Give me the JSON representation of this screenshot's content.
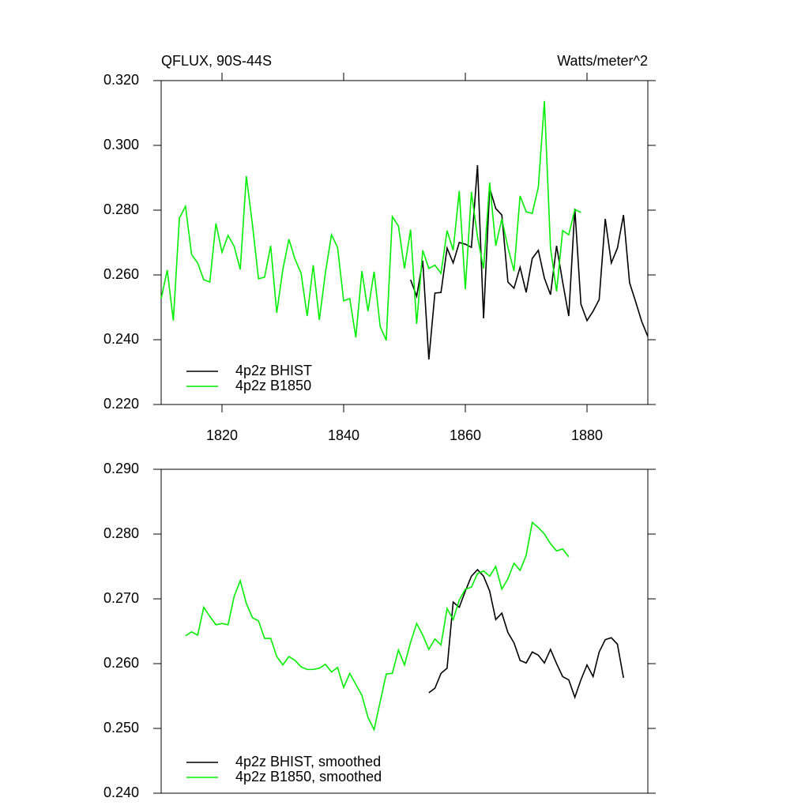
{
  "chart_data": [
    {
      "type": "line",
      "title": "QFLUX, 90S-44S",
      "subtitle": "Watts/meter^2",
      "xlim": [
        1810,
        1890
      ],
      "xticks": [
        1820,
        1840,
        1860,
        1880
      ],
      "ylim": [
        0.22,
        0.32
      ],
      "yticks": [
        {
          "value": 0.22,
          "label": "0.220"
        },
        {
          "value": 0.24,
          "label": "0.240"
        },
        {
          "value": 0.26,
          "label": "0.260"
        },
        {
          "value": 0.28,
          "label": "0.280"
        },
        {
          "value": 0.3,
          "label": "0.300"
        },
        {
          "value": 0.32,
          "label": "0.320"
        }
      ],
      "series": [
        {
          "name": "4p2z BHIST",
          "color": "#000000",
          "x": [
            1851,
            1852,
            1853,
            1854,
            1855,
            1856,
            1857,
            1858,
            1859,
            1860,
            1861,
            1862,
            1863,
            1864,
            1865,
            1866,
            1867,
            1868,
            1869,
            1870,
            1871,
            1872,
            1873,
            1874,
            1875,
            1876,
            1877,
            1878,
            1879,
            1880,
            1881,
            1882,
            1883,
            1884,
            1885,
            1886,
            1887,
            1888,
            1889,
            1890
          ],
          "values": [
            0.2585,
            0.2534,
            0.2644,
            0.2339,
            0.2544,
            0.2546,
            0.2683,
            0.2637,
            0.27,
            0.2695,
            0.2685,
            0.2939,
            0.2466,
            0.2868,
            0.2805,
            0.2785,
            0.2578,
            0.2559,
            0.2624,
            0.2546,
            0.2651,
            0.2676,
            0.259,
            0.2539,
            0.269,
            0.2578,
            0.2473,
            0.2805,
            0.251,
            0.2459,
            0.2488,
            0.2524,
            0.2773,
            0.2637,
            0.2683,
            0.2785,
            0.2576,
            0.2517,
            0.2456,
            0.241
          ]
        },
        {
          "name": "4p2z B1850",
          "color": "#00ee00",
          "x": [
            1810,
            1811,
            1812,
            1813,
            1814,
            1815,
            1816,
            1817,
            1818,
            1819,
            1820,
            1821,
            1822,
            1823,
            1824,
            1825,
            1826,
            1827,
            1828,
            1829,
            1830,
            1831,
            1832,
            1833,
            1834,
            1835,
            1836,
            1837,
            1838,
            1839,
            1840,
            1841,
            1842,
            1843,
            1844,
            1845,
            1846,
            1847,
            1848,
            1849,
            1850,
            1851,
            1852,
            1853,
            1854,
            1855,
            1856,
            1857,
            1858,
            1859,
            1860,
            1861,
            1862,
            1863,
            1864,
            1865,
            1866,
            1867,
            1868,
            1869,
            1870,
            1871,
            1872,
            1873,
            1874,
            1875,
            1876,
            1877,
            1878,
            1879
          ],
          "values": [
            0.2527,
            0.2615,
            0.2459,
            0.2776,
            0.2812,
            0.2663,
            0.2637,
            0.2585,
            0.2578,
            0.2759,
            0.267,
            0.2722,
            0.2688,
            0.2617,
            0.2905,
            0.2756,
            0.2588,
            0.2593,
            0.269,
            0.2483,
            0.2617,
            0.271,
            0.2649,
            0.2605,
            0.2473,
            0.263,
            0.2461,
            0.2607,
            0.2724,
            0.2685,
            0.252,
            0.2527,
            0.2407,
            0.2612,
            0.2488,
            0.261,
            0.2441,
            0.2398,
            0.278,
            0.2751,
            0.262,
            0.274,
            0.2449,
            0.2676,
            0.262,
            0.263,
            0.2605,
            0.2737,
            0.2676,
            0.2859,
            0.2556,
            0.2856,
            0.2717,
            0.262,
            0.2885,
            0.269,
            0.2773,
            0.2685,
            0.2612,
            0.2844,
            0.2795,
            0.279,
            0.2871,
            0.3137,
            0.2683,
            0.2549,
            0.2737,
            0.2724,
            0.2802,
            0.2793
          ]
        }
      ]
    },
    {
      "type": "line",
      "xlim": [
        1810,
        1890
      ],
      "ylim": [
        0.24,
        0.29
      ],
      "yticks": [
        {
          "value": 0.24,
          "label": "0.240"
        },
        {
          "value": 0.25,
          "label": "0.250"
        },
        {
          "value": 0.26,
          "label": "0.260"
        },
        {
          "value": 0.27,
          "label": "0.270"
        },
        {
          "value": 0.28,
          "label": "0.280"
        },
        {
          "value": 0.29,
          "label": "0.290"
        }
      ],
      "series": [
        {
          "name": "4p2z BHIST, smoothed",
          "color": "#000000",
          "x": [
            1854,
            1855,
            1856,
            1857,
            1858,
            1859,
            1860,
            1861,
            1862,
            1863,
            1864,
            1865,
            1866,
            1867,
            1868,
            1869,
            1870,
            1871,
            1872,
            1873,
            1874,
            1875,
            1876,
            1877,
            1878,
            1879,
            1880,
            1881,
            1882,
            1883,
            1884,
            1885,
            1886
          ],
          "values": [
            0.2555,
            0.2562,
            0.2585,
            0.2593,
            0.2695,
            0.2687,
            0.2712,
            0.2735,
            0.2745,
            0.2735,
            0.2712,
            0.2668,
            0.2678,
            0.2648,
            0.2632,
            0.2605,
            0.2601,
            0.2618,
            0.2613,
            0.2601,
            0.2622,
            0.26,
            0.258,
            0.2575,
            0.2548,
            0.2575,
            0.2598,
            0.258,
            0.2618,
            0.2637,
            0.264,
            0.263,
            0.2578
          ]
        },
        {
          "name": "4p2z B1850, smoothed",
          "color": "#00ee00",
          "x": [
            1814,
            1815,
            1816,
            1817,
            1818,
            1819,
            1820,
            1821,
            1822,
            1823,
            1824,
            1825,
            1826,
            1827,
            1828,
            1829,
            1830,
            1831,
            1832,
            1833,
            1834,
            1835,
            1836,
            1837,
            1838,
            1839,
            1840,
            1841,
            1842,
            1843,
            1844,
            1845,
            1846,
            1847,
            1848,
            1849,
            1850,
            1851,
            1852,
            1853,
            1854,
            1855,
            1856,
            1857,
            1858,
            1859,
            1860,
            1861,
            1862,
            1863,
            1864,
            1865,
            1866,
            1867,
            1868,
            1869,
            1870,
            1871,
            1872,
            1873,
            1874,
            1875,
            1876,
            1877
          ],
          "values": [
            0.2643,
            0.2649,
            0.2644,
            0.2687,
            0.2673,
            0.266,
            0.2662,
            0.266,
            0.2704,
            0.2728,
            0.2693,
            0.2671,
            0.2666,
            0.2639,
            0.2639,
            0.2611,
            0.2598,
            0.2611,
            0.2605,
            0.2595,
            0.2591,
            0.2591,
            0.2593,
            0.2599,
            0.2587,
            0.2594,
            0.2563,
            0.2585,
            0.2568,
            0.2551,
            0.2517,
            0.2498,
            0.2541,
            0.2584,
            0.2585,
            0.2621,
            0.2598,
            0.2633,
            0.2662,
            0.2644,
            0.2622,
            0.2638,
            0.2629,
            0.2685,
            0.2668,
            0.2698,
            0.2715,
            0.2718,
            0.2739,
            0.2743,
            0.2735,
            0.275,
            0.2715,
            0.2731,
            0.2755,
            0.2744,
            0.2767,
            0.2818,
            0.281,
            0.28,
            0.2785,
            0.2774,
            0.2777,
            0.2765
          ]
        }
      ]
    }
  ]
}
